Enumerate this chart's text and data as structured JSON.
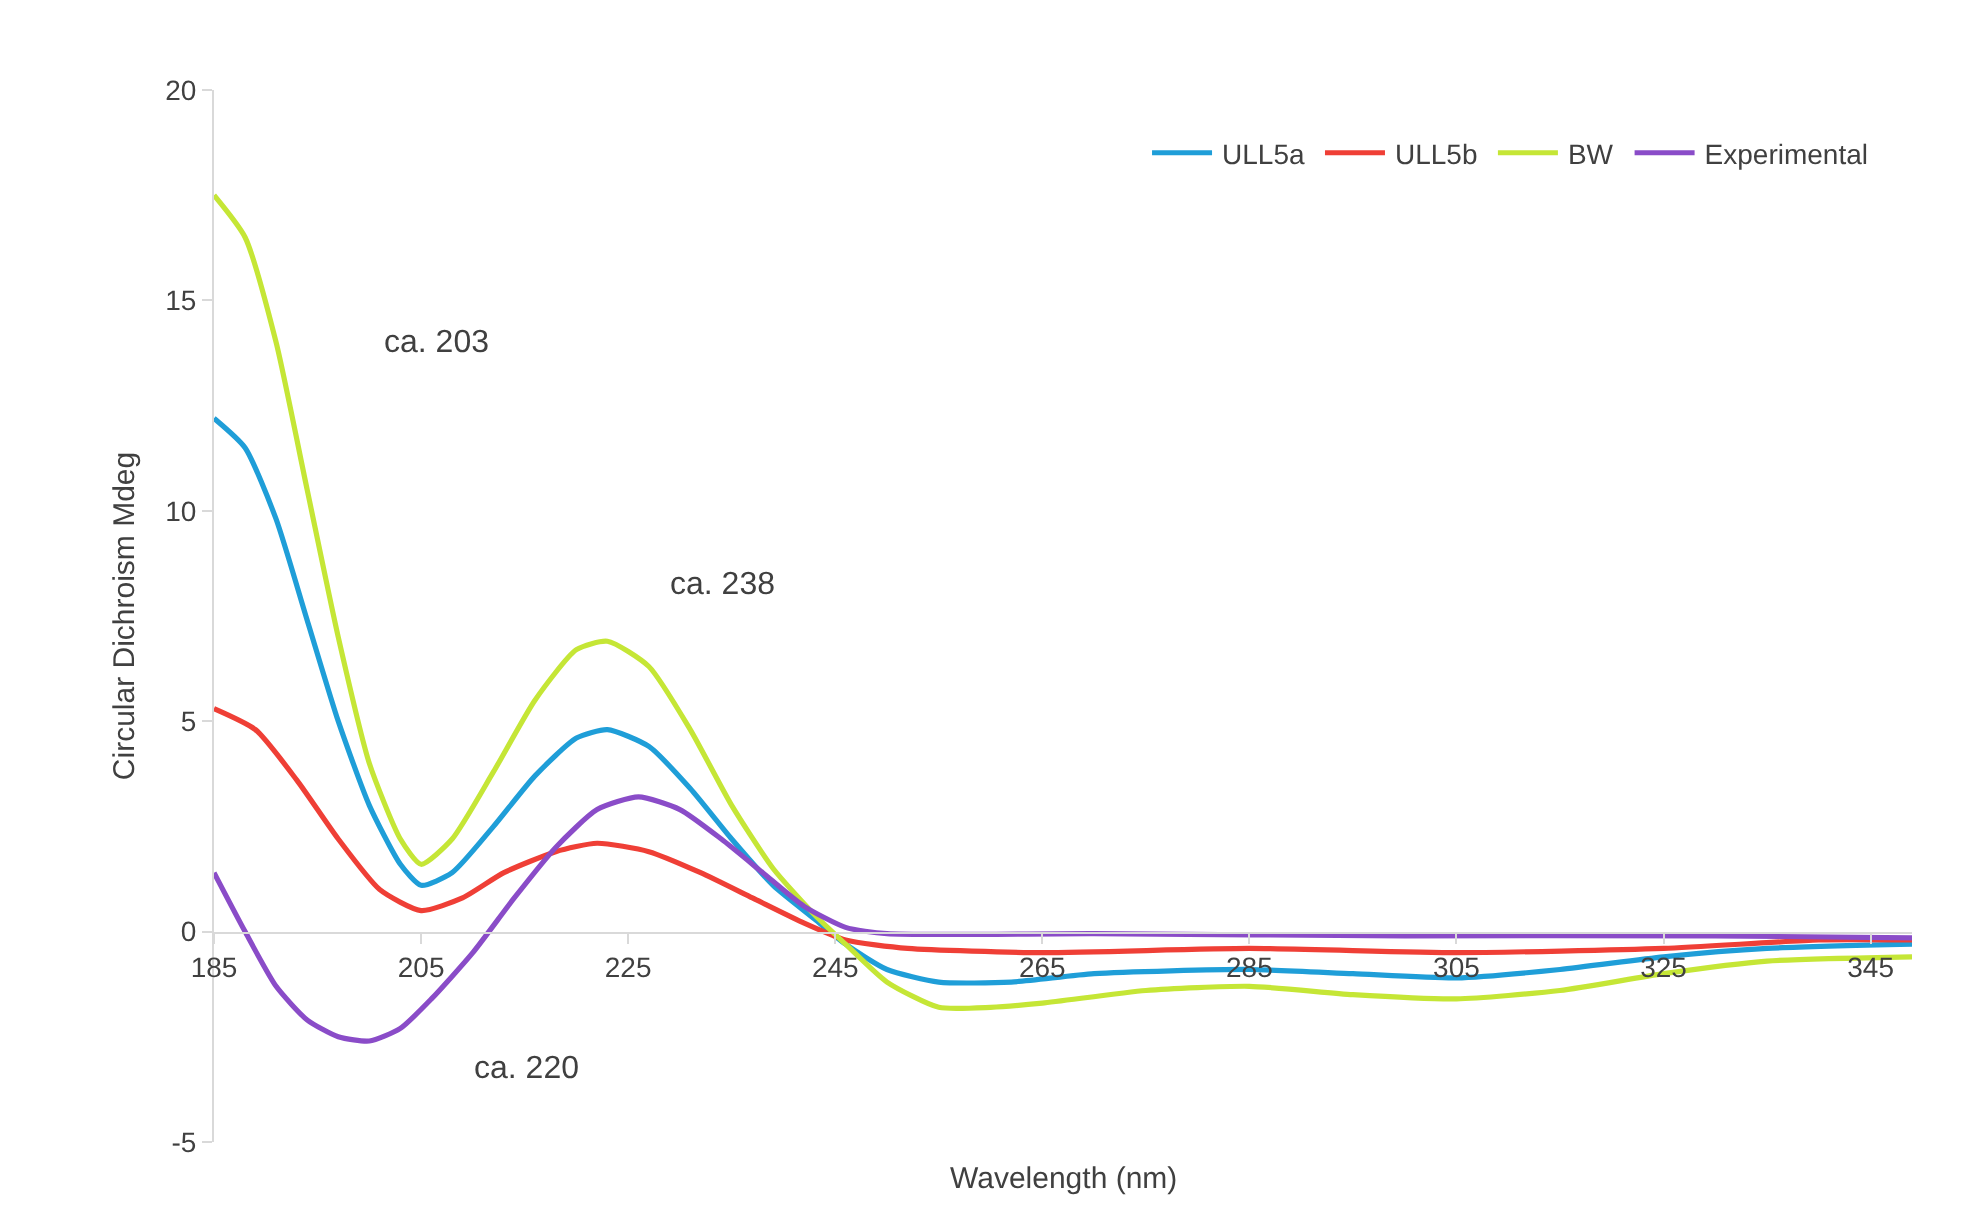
{
  "chart_data": {
    "type": "line",
    "xlabel": "Wavelength (nm)",
    "ylabel": "Circular Dichroism Mdeg",
    "xlim": [
      185,
      349
    ],
    "xticks": [
      185,
      205,
      225,
      245,
      265,
      285,
      305,
      325,
      345
    ],
    "ylim": [
      -5,
      20
    ],
    "yticks": [
      -5,
      0,
      5,
      10,
      15,
      20
    ],
    "grid": false,
    "legend": "top right",
    "marker": "none",
    "line_style": "solid",
    "annotations": [
      "ca. 203",
      "ca. 238",
      "ca. 220"
    ],
    "series": [
      {
        "name": "ULL5a",
        "color": "#1f9ed8",
        "x": [
          185,
          188,
          191,
          194,
          197,
          200,
          203,
          205,
          208,
          212,
          216,
          220,
          223,
          227,
          231,
          235,
          239,
          243,
          246,
          250,
          255,
          262,
          270,
          285,
          295,
          305,
          315,
          325,
          335,
          349
        ],
        "values": [
          12.2,
          11.5,
          9.8,
          7.4,
          5.0,
          3.0,
          1.6,
          1.1,
          1.4,
          2.5,
          3.7,
          4.6,
          4.8,
          4.4,
          3.4,
          2.2,
          1.1,
          0.3,
          -0.3,
          -0.9,
          -1.2,
          -1.2,
          -1.0,
          -0.9,
          -1.0,
          -1.1,
          -0.9,
          -0.6,
          -0.4,
          -0.3
        ]
      },
      {
        "name": "ULL5b",
        "color": "#ef3f36",
        "x": [
          185,
          189,
          193,
          197,
          201,
          205,
          209,
          213,
          218,
          222,
          227,
          232,
          237,
          242,
          246,
          252,
          265,
          285,
          305,
          325,
          340,
          349
        ],
        "values": [
          5.3,
          4.8,
          3.6,
          2.2,
          1.0,
          0.5,
          0.8,
          1.4,
          1.9,
          2.1,
          1.9,
          1.4,
          0.8,
          0.2,
          -0.2,
          -0.4,
          -0.5,
          -0.4,
          -0.5,
          -0.4,
          -0.2,
          -0.2
        ]
      },
      {
        "name": "BW",
        "color": "#c5e636",
        "x": [
          185,
          188,
          191,
          194,
          197,
          200,
          203,
          205,
          208,
          212,
          216,
          220,
          223,
          227,
          231,
          235,
          239,
          243,
          246,
          250,
          255,
          260,
          265,
          275,
          285,
          295,
          305,
          315,
          325,
          335,
          349
        ],
        "values": [
          17.5,
          16.5,
          14,
          10.5,
          7,
          4,
          2.2,
          1.6,
          2.2,
          3.8,
          5.5,
          6.7,
          6.9,
          6.3,
          4.8,
          3.0,
          1.5,
          0.4,
          -0.3,
          -1.2,
          -1.8,
          -1.8,
          -1.7,
          -1.4,
          -1.3,
          -1.5,
          -1.6,
          -1.4,
          -1.0,
          -0.7,
          -0.6
        ]
      },
      {
        "name": "Experimental",
        "color": "#8a4cc8",
        "x": [
          185,
          188,
          191,
          194,
          197,
          200,
          203,
          206,
          210,
          214,
          218,
          222,
          226,
          230,
          234,
          238,
          242,
          246,
          250,
          270,
          300,
          330,
          349
        ],
        "values": [
          1.4,
          0.0,
          -1.3,
          -2.1,
          -2.5,
          -2.6,
          -2.3,
          -1.6,
          -0.5,
          0.8,
          2.0,
          2.9,
          3.2,
          2.9,
          2.2,
          1.4,
          0.6,
          0.1,
          -0.05,
          -0.05,
          -0.1,
          -0.1,
          -0.15
        ]
      }
    ]
  }
}
